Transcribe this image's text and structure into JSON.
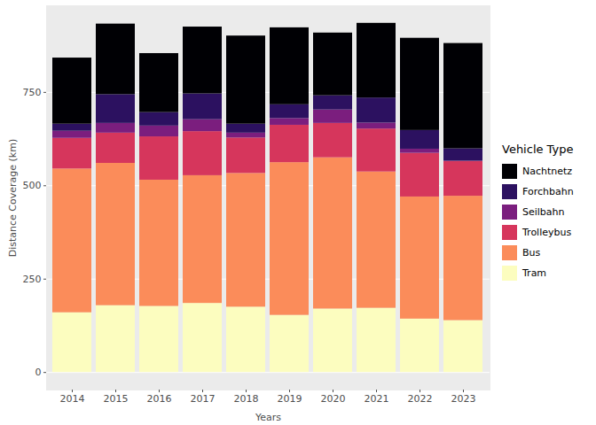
{
  "chart_data": {
    "type": "bar",
    "stacked": true,
    "grid": true,
    "legend": "right",
    "x_label": "Years",
    "y_label": "Distance Coverage (km)",
    "legend_title": "Vehicle Type",
    "categories": [
      "2014",
      "2015",
      "2016",
      "2017",
      "2018",
      "2019",
      "2020",
      "2021",
      "2022",
      "2023"
    ],
    "ylim": [
      -47,
      982
    ],
    "yticks": [
      0,
      250,
      500,
      750
    ],
    "series": [
      {
        "name": "Nachtnetz",
        "color": "#000004",
        "values": [
          177,
          189,
          158,
          179,
          236,
          206,
          168,
          200,
          247,
          282
        ]
      },
      {
        "name": "Forchbahn",
        "color": "#2C1160",
        "values": [
          19,
          77,
          36,
          69,
          24,
          37,
          38,
          67,
          50,
          33
        ]
      },
      {
        "name": "Seilbahn",
        "color": "#7B1E7E",
        "values": [
          19,
          26,
          29,
          32,
          13,
          18,
          36,
          16,
          11,
          1
        ]
      },
      {
        "name": "Trolleybus",
        "color": "#D6365C",
        "values": [
          82,
          81,
          116,
          118,
          95,
          100,
          92,
          115,
          117,
          93
        ]
      },
      {
        "name": "Bus",
        "color": "#FB8C5A",
        "values": [
          385,
          381,
          338,
          342,
          358,
          409,
          405,
          365,
          327,
          333
        ]
      },
      {
        "name": "Tram",
        "color": "#FCFDBF",
        "values": [
          160,
          179,
          177,
          185,
          175,
          153,
          170,
          172,
          143,
          139
        ]
      }
    ]
  }
}
